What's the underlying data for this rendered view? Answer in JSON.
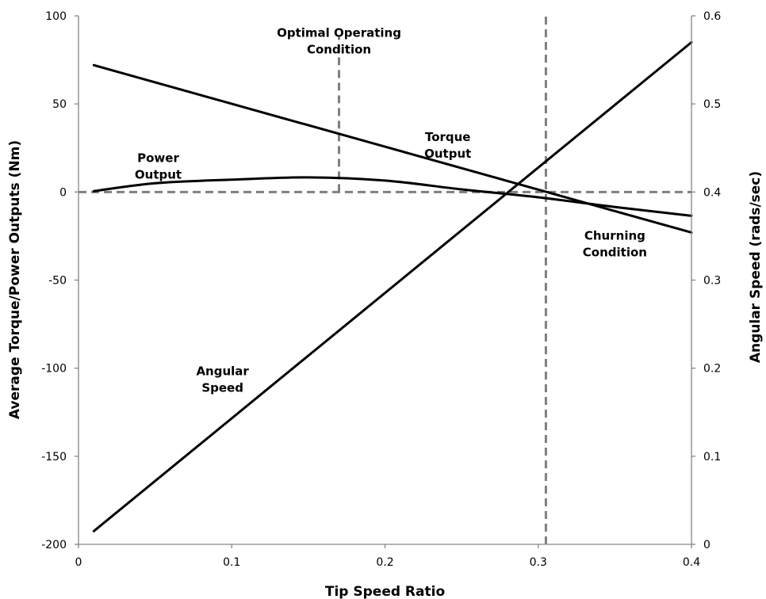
{
  "chart_data": {
    "type": "line",
    "xlabel": "Tip Speed Ratio",
    "ylabel_left": "Average Torque/Power Outputs (Nm)",
    "ylabel_right": "Angular Speed (rads/sec)",
    "xlim": [
      0,
      0.4
    ],
    "ylim_left": [
      -200,
      100
    ],
    "ylim_right": [
      0,
      0.6
    ],
    "grid": false,
    "x_ticks": [
      0,
      0.1,
      0.2,
      0.3,
      0.4
    ],
    "x_tick_labels": [
      "0",
      "0.1",
      "0.2",
      "0.3",
      "0.4"
    ],
    "y_left_ticks": [
      100,
      50,
      0,
      -50,
      -100,
      -150,
      -200
    ],
    "y_left_tick_labels": [
      "100",
      "50",
      "0",
      "-50",
      "-100",
      "-150",
      "-200"
    ],
    "y_right_ticks": [
      0.6,
      0.5,
      0.4,
      0.3,
      0.2,
      0.1,
      0
    ],
    "y_right_tick_labels": [
      "0.6",
      "0.5",
      "0.4",
      "0.3",
      "0.2",
      "0.1",
      "0"
    ],
    "series": [
      {
        "axis": "left",
        "color": "#000000",
        "x": [
          0.01,
          0.4
        ],
        "y": [
          72,
          -23
        ]
      },
      {
        "axis": "left",
        "color": "#000000",
        "x": [
          0.01,
          0.05,
          0.1,
          0.15,
          0.2,
          0.25,
          0.3,
          0.35,
          0.4
        ],
        "y": [
          0.5,
          5,
          7,
          8.3,
          6.5,
          1.5,
          -3,
          -8.5,
          -13.5
        ]
      },
      {
        "axis": "right",
        "color": "#000000",
        "x": [
          0.01,
          0.4
        ],
        "y": [
          0.015,
          0.57
        ]
      }
    ],
    "reference_lines": [
      {
        "orientation": "horizontal",
        "axis": "left",
        "value": 0,
        "style": "dashed",
        "color": "#7f7f7f"
      },
      {
        "orientation": "vertical",
        "value": 0.17,
        "y_from": 0,
        "y_to": 88,
        "style": "dashed",
        "color": "#7f7f7f"
      },
      {
        "orientation": "vertical",
        "value": 0.305,
        "y_from": -200,
        "y_to": 100,
        "style": "dashed",
        "color": "#7f7f7f"
      }
    ],
    "annotations": [
      {
        "lines": [
          "Optimal Operating",
          "Condition"
        ],
        "x": 0.17,
        "y": 88
      },
      {
        "lines": [
          "Torque",
          "Output"
        ],
        "x": 0.241,
        "y": 29
      },
      {
        "lines": [
          "Power",
          "Output"
        ],
        "x": 0.052,
        "y": 17
      },
      {
        "lines": [
          "Churning",
          "Condition"
        ],
        "x": 0.35,
        "y": -27
      },
      {
        "lines": [
          "Angular",
          "Speed"
        ],
        "x": 0.094,
        "y": -104
      }
    ]
  }
}
